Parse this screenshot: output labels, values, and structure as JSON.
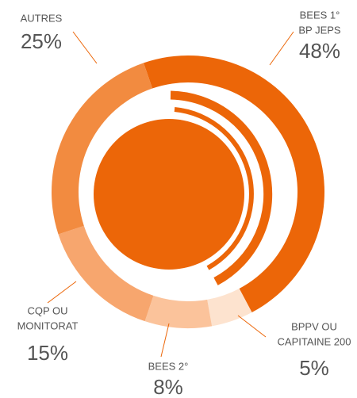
{
  "chart_data": {
    "type": "donut",
    "categories": [
      [
        "BEES 1°",
        "BP JEPS"
      ],
      [
        "BPPV OU",
        "CAPITAINE 200"
      ],
      [
        "BEES 2°"
      ],
      [
        "CQP OU",
        "MONITORAT"
      ],
      [
        "AUTRES"
      ]
    ],
    "values": [
      48,
      5,
      8,
      15,
      25
    ],
    "value_labels": [
      "48%",
      "5%",
      "8%",
      "15%",
      "25%"
    ],
    "colors": [
      "#ec6608",
      "#fde3cf",
      "#fbc39b",
      "#f7a66e",
      "#f28b40"
    ]
  }
}
